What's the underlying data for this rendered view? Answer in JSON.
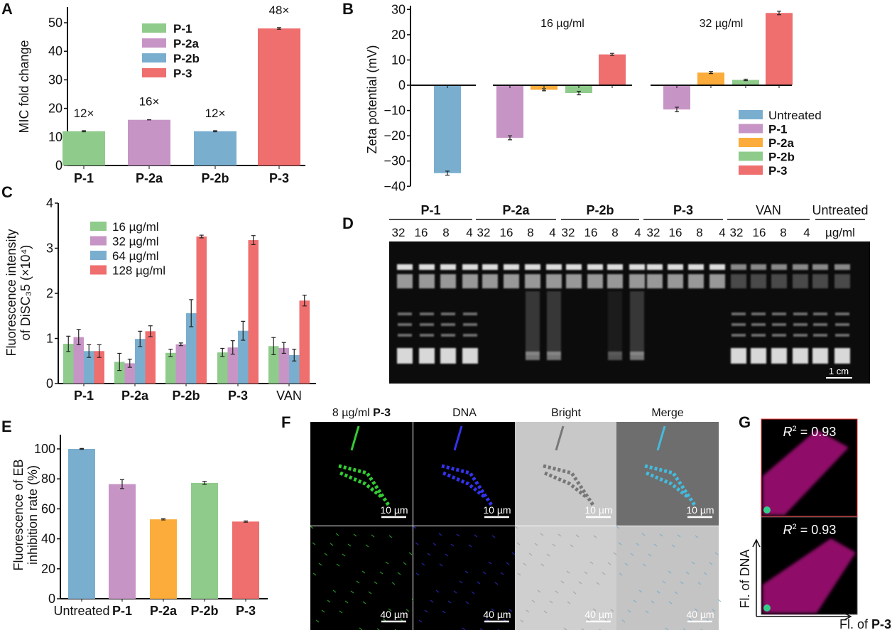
{
  "panel_letters": [
    "A",
    "B",
    "C",
    "D",
    "E",
    "F",
    "G"
  ],
  "colors": {
    "blue": "#7aaecf",
    "purple": "#c795c5",
    "orange": "#fbac3a",
    "green": "#8fcb8b",
    "red": "#ef6e6e"
  },
  "chart_data": [
    {
      "panel": "A",
      "type": "bar",
      "ylabel": "MIC fold change",
      "ylim": [
        0,
        55
      ],
      "yticks": [
        0,
        10,
        20,
        30,
        40,
        50
      ],
      "categories": [
        "P-1",
        "P-2a",
        "P-2b",
        "P-3"
      ],
      "values": [
        12,
        16,
        12,
        48
      ],
      "errors": [
        0.2,
        0,
        0.2,
        0.3
      ],
      "data_labels": [
        "12×",
        "16×",
        "12×",
        "48×"
      ],
      "bar_colors": [
        "#8fcb8b",
        "#c795c5",
        "#7aaecf",
        "#ef6e6e"
      ],
      "legend": [
        "P-1",
        "P-2a",
        "P-2b",
        "P-3"
      ],
      "legend_placement": "top-center"
    },
    {
      "panel": "B",
      "type": "bar",
      "ylabel": "Zeta potential (mV)",
      "ylim": [
        -40,
        30
      ],
      "yticks": [
        -40,
        -30,
        -20,
        -10,
        0,
        10,
        20,
        30
      ],
      "groups": [
        {
          "label": "",
          "categories": [
            "Untreated"
          ],
          "values": [
            -34.8
          ],
          "errors": [
            0.8
          ]
        },
        {
          "label": "16 µg/ml",
          "categories": [
            "P-1",
            "P-2a",
            "P-2b",
            "P-3"
          ],
          "values": [
            -20.8,
            -1.8,
            -3.1,
            12.2
          ],
          "errors": [
            0.8,
            0.4,
            0.7,
            0.4
          ]
        },
        {
          "label": "32 µg/ml",
          "categories": [
            "P-1",
            "P-2a",
            "P-2b",
            "P-3"
          ],
          "values": [
            -9.6,
            5.0,
            2.1,
            28.6
          ],
          "errors": [
            0.9,
            0.4,
            0.3,
            0.7
          ]
        }
      ],
      "legend": [
        "Untreated",
        "P-1",
        "P-2a",
        "P-2b",
        "P-3"
      ],
      "legend_colors": [
        "#7aaecf",
        "#c795c5",
        "#fbac3a",
        "#8fcb8b",
        "#ef6e6e"
      ],
      "legend_placement": "bottom-right"
    },
    {
      "panel": "C",
      "type": "bar",
      "ylabel": [
        "Fluorescence intensity",
        "of DiSC₃5 (×10⁴)"
      ],
      "ylim": [
        0,
        4
      ],
      "yticks": [
        0,
        1,
        2,
        3,
        4
      ],
      "categories": [
        "P-1",
        "P-2a",
        "P-2b",
        "P-3",
        "VAN"
      ],
      "series": [
        {
          "name": "16 µg/ml",
          "color": "#8fcb8b",
          "values": [
            0.88,
            0.48,
            0.68,
            0.69,
            0.83
          ],
          "errors": [
            0.17,
            0.19,
            0.08,
            0.09,
            0.19
          ]
        },
        {
          "name": "32 µg/ml",
          "color": "#c795c5",
          "values": [
            1.03,
            0.45,
            0.87,
            0.8,
            0.79
          ],
          "errors": [
            0.17,
            0.09,
            0.03,
            0.15,
            0.12
          ]
        },
        {
          "name": "64 µg/ml",
          "color": "#7aaecf",
          "values": [
            0.72,
            0.99,
            1.56,
            1.17,
            0.63
          ],
          "errors": [
            0.14,
            0.17,
            0.3,
            0.21,
            0.13
          ]
        },
        {
          "name": "128 µg/ml",
          "color": "#ef6e6e",
          "values": [
            0.72,
            1.16,
            3.26,
            3.18,
            1.84
          ],
          "errors": [
            0.14,
            0.12,
            0.03,
            0.1,
            0.12
          ]
        }
      ],
      "legend_placement": "top-left"
    },
    {
      "panel": "E",
      "type": "bar",
      "ylabel": [
        "Fluorescence of EB",
        "inhibition rate (%)"
      ],
      "ylim": [
        0,
        110
      ],
      "yticks": [
        0,
        20,
        40,
        60,
        80,
        100
      ],
      "categories": [
        "Untreated",
        "P-1",
        "P-2a",
        "P-2b",
        "P-3"
      ],
      "bold_categories": [
        false,
        true,
        true,
        true,
        true
      ],
      "values": [
        100,
        76.5,
        53,
        77.3,
        51.5
      ],
      "errors": [
        0.3,
        3,
        0.4,
        1,
        0.4
      ],
      "bar_colors": [
        "#7aaecf",
        "#c795c5",
        "#fbac3a",
        "#8fcb8b",
        "#ef6e6e"
      ]
    }
  ],
  "gel": {
    "groups": [
      "P-1",
      "P-2a",
      "P-2b",
      "P-3",
      "VAN",
      "Untreated"
    ],
    "bold_groups": [
      true,
      true,
      true,
      true,
      false,
      false
    ],
    "lane_labels": [
      "32",
      "16",
      "8",
      "4"
    ],
    "unit": "µg/ml",
    "scale_bar": "1 cm"
  },
  "microscopy": {
    "title_prefix": "8 µg/ml ",
    "title_bold": "P-3",
    "columns": [
      "DNA",
      "Bright",
      "Merge"
    ],
    "scale_top": "10 µm",
    "scale_bottom": "40 µm"
  },
  "colocalization": {
    "r2_label": "R",
    "r2_value": " = 0.93",
    "y_axis": "Fl. of DNA",
    "x_axis_prefix": "Fl. of ",
    "x_axis_bold": "P-3"
  }
}
